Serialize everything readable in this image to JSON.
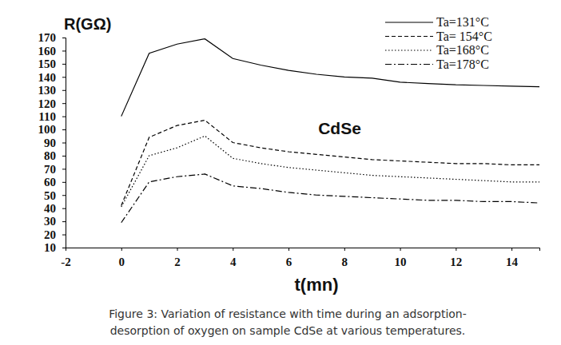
{
  "chart_data": {
    "type": "line",
    "y_label": "R(GΩ)",
    "x_label": "t(mn)",
    "annotations": [
      "CdSe"
    ],
    "caption": [
      "Figure 3: Variation of resistance with time during an adsorption-",
      "desorption of oxygen on sample CdSe at various temperatures."
    ],
    "x": [
      0,
      1,
      2,
      3,
      4,
      5,
      6,
      7,
      8,
      9,
      10,
      11,
      12,
      13,
      14,
      15
    ],
    "series": [
      {
        "name": "Ta=131°C",
        "color": "#000000",
        "line_style": "solid",
        "values": [
          110,
          158,
          165,
          169,
          154,
          149,
          145,
          142,
          140,
          139,
          136,
          135,
          134,
          133.5,
          133,
          132.5
        ]
      },
      {
        "name": "Ta= 154°C",
        "color": "#000000",
        "line_style": "dashed",
        "values": [
          42,
          94,
          103,
          107,
          90,
          86,
          83,
          81,
          79,
          77,
          76,
          75,
          74,
          74,
          73,
          73
        ]
      },
      {
        "name": "Ta=168°C",
        "color": "#000000",
        "line_style": "dotted",
        "values": [
          41,
          80,
          86,
          95,
          78,
          74,
          71,
          69,
          67,
          65,
          64,
          63,
          62,
          61,
          60,
          60
        ]
      },
      {
        "name": "Ta=178°C",
        "color": "#000000",
        "line_style": "dashdot",
        "values": [
          29,
          60,
          64,
          66,
          57,
          55,
          52,
          50,
          49,
          48,
          47,
          46,
          46,
          45,
          45,
          44
        ]
      }
    ],
    "xlim": [
      -2,
      15
    ],
    "xticks": [
      -2,
      0,
      2,
      4,
      6,
      8,
      10,
      12,
      14
    ],
    "ylim": [
      10,
      170
    ],
    "yticks": [
      10,
      20,
      30,
      40,
      50,
      60,
      70,
      80,
      90,
      100,
      110,
      120,
      130,
      140,
      150,
      160,
      170
    ],
    "legend": "upper right",
    "grid": false
  }
}
